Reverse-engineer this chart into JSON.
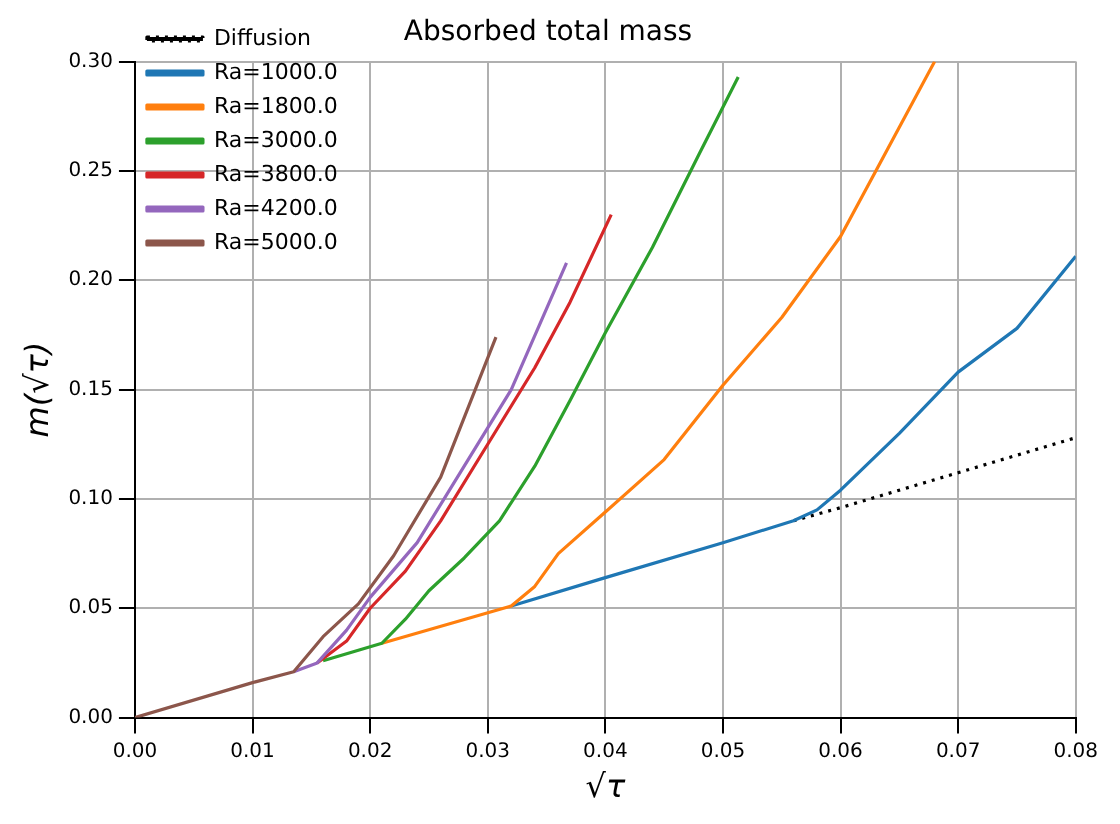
{
  "chart_data": {
    "type": "line",
    "title": "Absorbed total mass",
    "xlabel": "√τ",
    "ylabel": "m(√τ)",
    "xlim": [
      0,
      0.08
    ],
    "xticks": [
      {
        "value": 0,
        "label": "0.00"
      },
      {
        "value": 0.01,
        "label": "0.01"
      },
      {
        "value": 0.02,
        "label": "0.02"
      },
      {
        "value": 0.03,
        "label": "0.03"
      },
      {
        "value": 0.04,
        "label": "0.04"
      },
      {
        "value": 0.05,
        "label": "0.05"
      },
      {
        "value": 0.06,
        "label": "0.06"
      },
      {
        "value": 0.07,
        "label": "0.07"
      },
      {
        "value": 0.08,
        "label": "0.08"
      }
    ],
    "ylim": [
      0,
      0.3
    ],
    "yticks": [
      {
        "value": 0,
        "label": "0.00"
      },
      {
        "value": 0.05,
        "label": "0.05"
      },
      {
        "value": 0.1,
        "label": "0.10"
      },
      {
        "value": 0.15,
        "label": "0.15"
      },
      {
        "value": 0.2,
        "label": "0.20"
      },
      {
        "value": 0.25,
        "label": "0.25"
      },
      {
        "value": 0.3,
        "label": "0.30"
      }
    ],
    "grid": true,
    "legend": "top left",
    "marker": "none",
    "series": [
      {
        "name": "Diffusion",
        "color": "#000000",
        "line_style": "dotted",
        "x": [
          0.056,
          0.06,
          0.07,
          0.08
        ],
        "values": [
          0.09,
          0.096,
          0.112,
          0.128
        ]
      },
      {
        "name": "Ra=1000.0",
        "color": "#1f77b4",
        "line_style": "solid",
        "x": [
          0.032,
          0.04,
          0.05,
          0.056,
          0.058,
          0.06,
          0.065,
          0.07,
          0.075,
          0.08
        ],
        "values": [
          0.051,
          0.064,
          0.08,
          0.09,
          0.095,
          0.104,
          0.13,
          0.158,
          0.178,
          0.211
        ]
      },
      {
        "name": "Ra=1800.0",
        "color": "#ff7f0e",
        "line_style": "solid",
        "x": [
          0.021,
          0.032,
          0.034,
          0.036,
          0.04,
          0.045,
          0.05,
          0.055,
          0.06,
          0.063,
          0.068
        ],
        "values": [
          0.034,
          0.051,
          0.06,
          0.075,
          0.094,
          0.118,
          0.152,
          0.183,
          0.22,
          0.25,
          0.3
        ]
      },
      {
        "name": "Ra=3000.0",
        "color": "#2ca02c",
        "line_style": "solid",
        "x": [
          0.016,
          0.021,
          0.023,
          0.025,
          0.028,
          0.031,
          0.034,
          0.037,
          0.04,
          0.044,
          0.048,
          0.0513
        ],
        "values": [
          0.026,
          0.034,
          0.045,
          0.058,
          0.073,
          0.09,
          0.115,
          0.145,
          0.176,
          0.215,
          0.258,
          0.293
        ]
      },
      {
        "name": "Ra=3800.0",
        "color": "#d62728",
        "line_style": "solid",
        "x": [
          0.0155,
          0.018,
          0.02,
          0.023,
          0.026,
          0.03,
          0.034,
          0.037,
          0.0405
        ],
        "values": [
          0.025,
          0.035,
          0.05,
          0.067,
          0.09,
          0.125,
          0.16,
          0.19,
          0.23
        ]
      },
      {
        "name": "Ra=4200.0",
        "color": "#9467bd",
        "line_style": "solid",
        "x": [
          0.0135,
          0.0155,
          0.018,
          0.02,
          0.024,
          0.028,
          0.032,
          0.0367
        ],
        "values": [
          0.021,
          0.025,
          0.04,
          0.055,
          0.08,
          0.115,
          0.15,
          0.208
        ]
      },
      {
        "name": "Ra=5000.0",
        "color": "#8c564b",
        "line_style": "solid",
        "x": [
          0,
          0.01,
          0.0135,
          0.016,
          0.019,
          0.022,
          0.026,
          0.0307
        ],
        "values": [
          0,
          0.016,
          0.021,
          0.037,
          0.052,
          0.074,
          0.11,
          0.174
        ]
      }
    ]
  }
}
